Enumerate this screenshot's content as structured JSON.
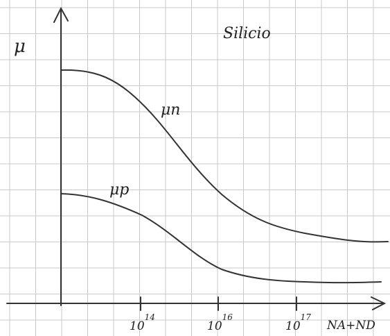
{
  "title": "Silicio",
  "y_axis": {
    "label": "μ"
  },
  "x_axis": {
    "label": "NA+ND",
    "ticks": [
      {
        "base": "10",
        "exponent": "14"
      },
      {
        "base": "10",
        "exponent": "16"
      },
      {
        "base": "10",
        "exponent": "17"
      }
    ]
  },
  "curves": [
    {
      "label": "μn"
    },
    {
      "label": "μp"
    }
  ]
}
